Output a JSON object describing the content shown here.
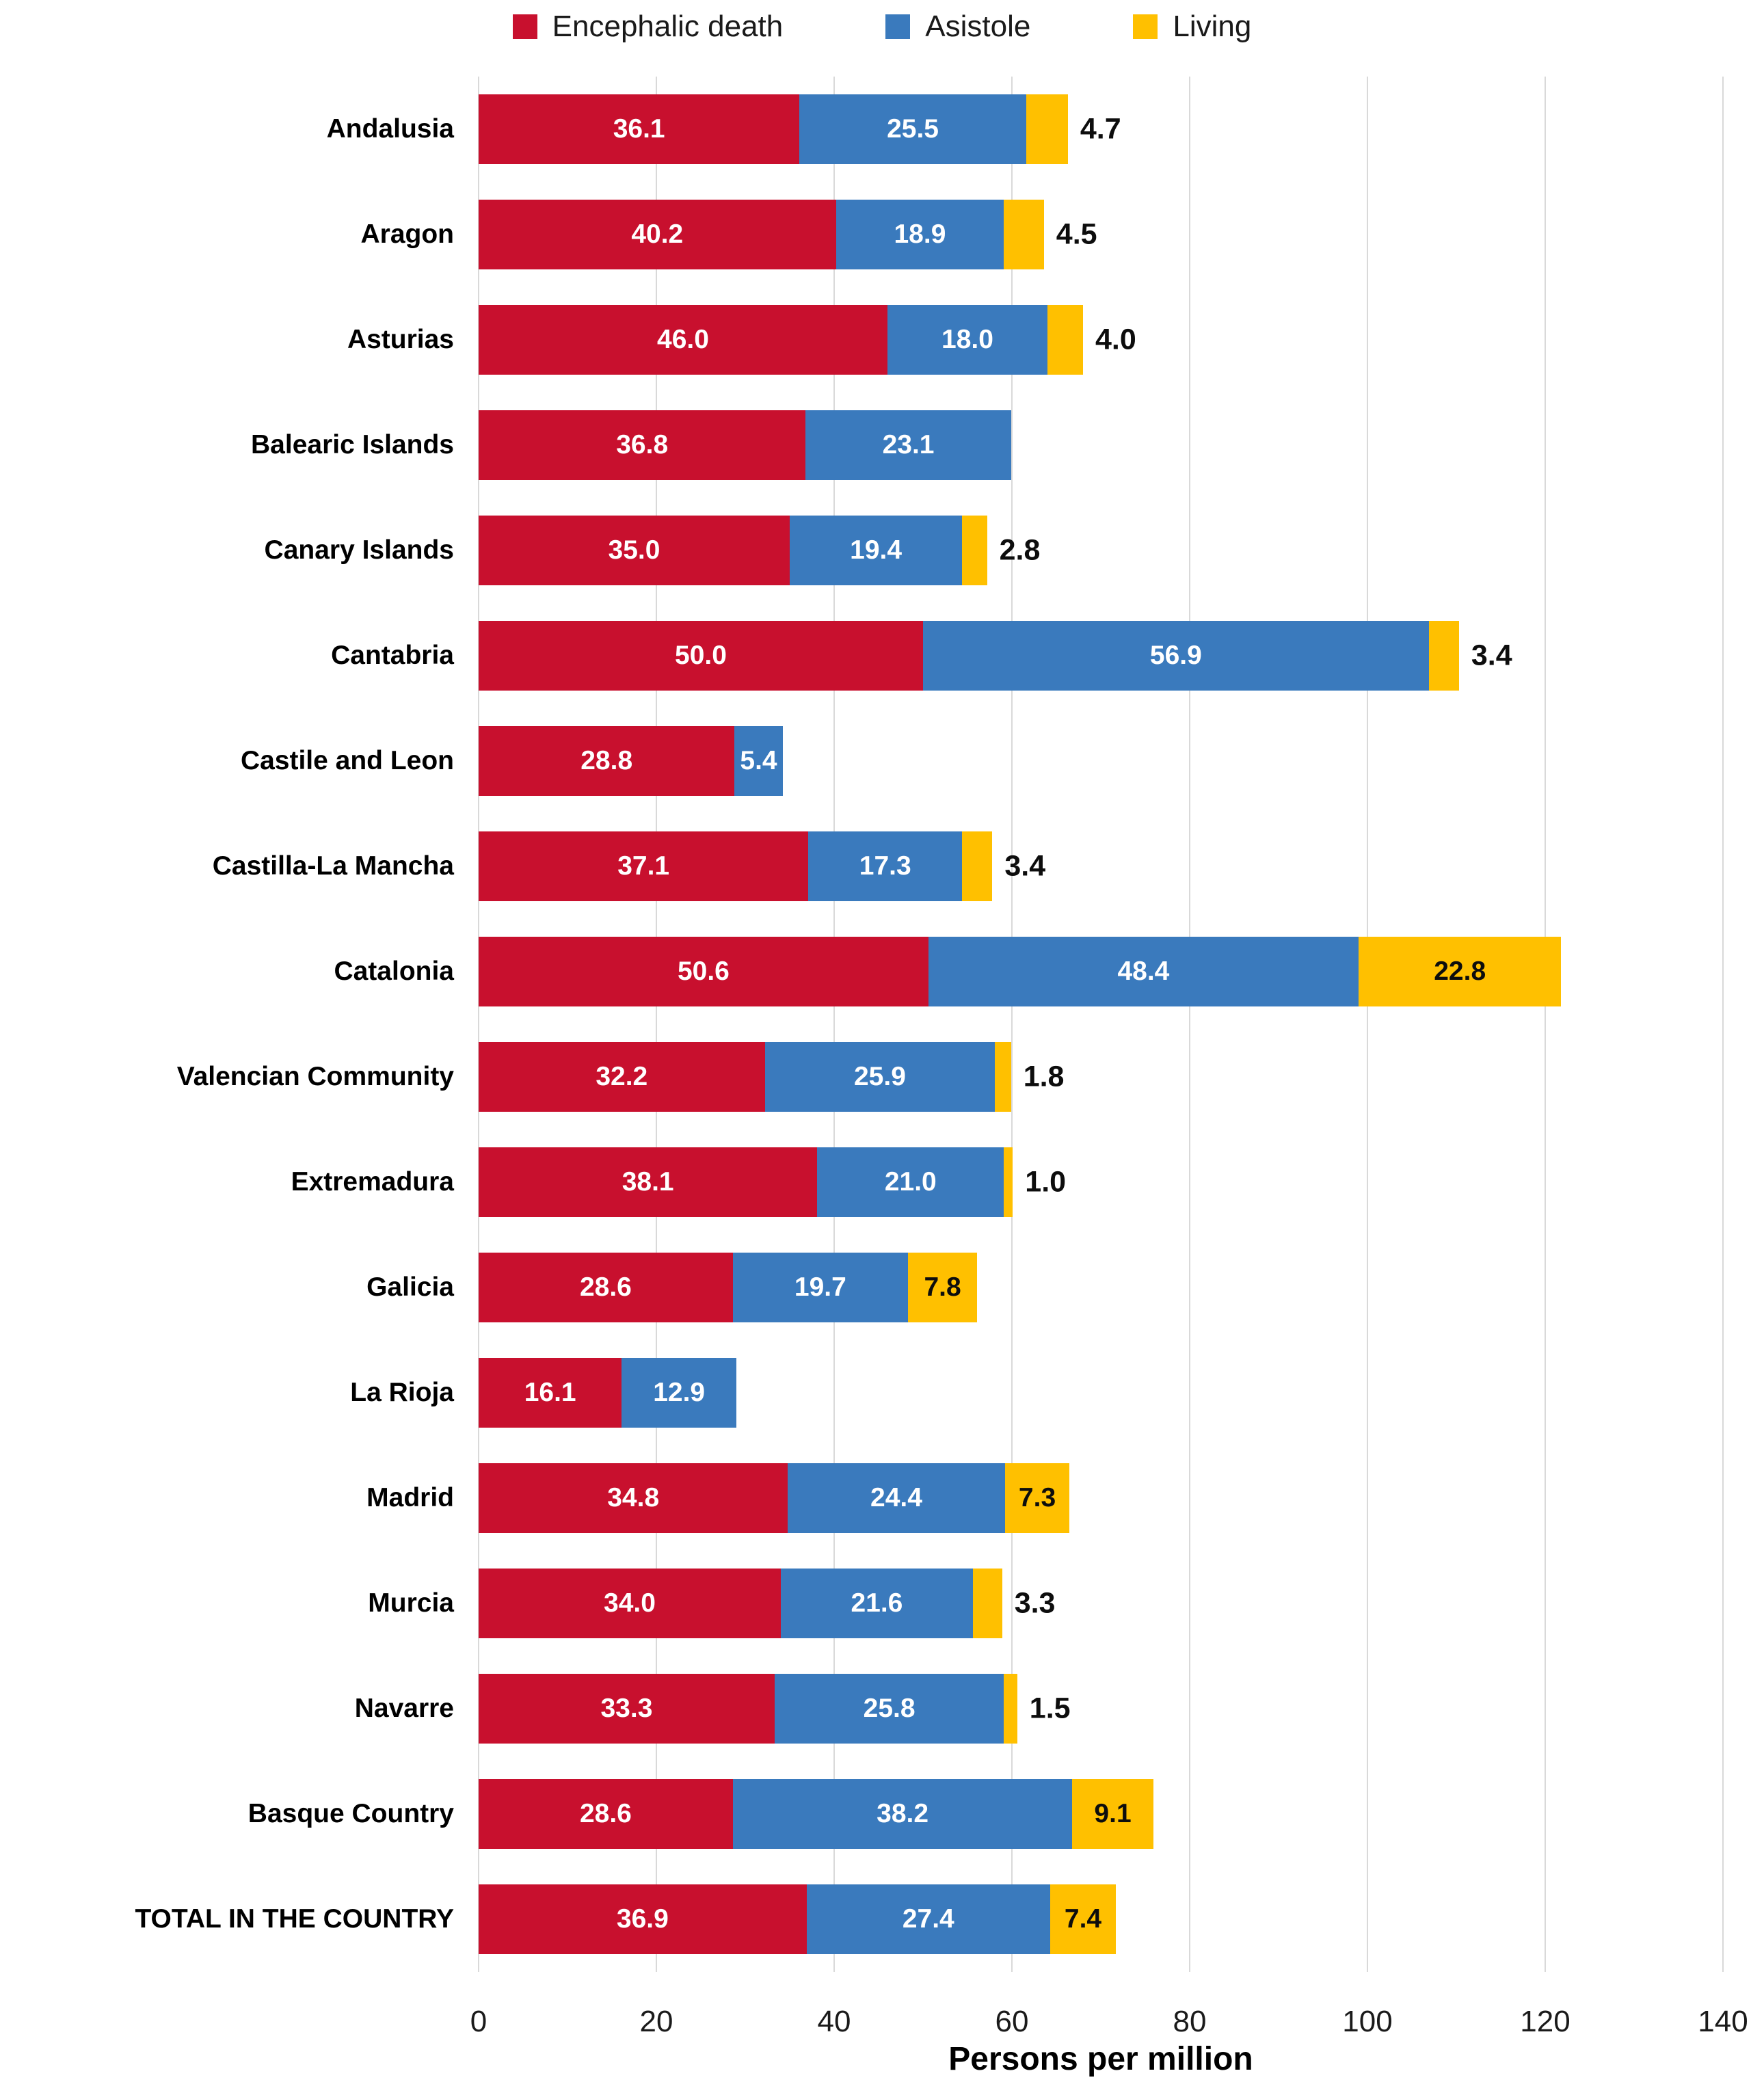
{
  "chart_data": {
    "type": "bar",
    "orientation": "horizontal",
    "stacked": true,
    "title": "",
    "xlabel": "Persons per million",
    "xlim": [
      0,
      140
    ],
    "xticks": [
      0,
      20,
      40,
      60,
      80,
      100,
      120,
      140
    ],
    "grid": "vertical",
    "legend_position": "top",
    "legend": [
      {
        "label": "Encephalic death",
        "color": "#c8102e"
      },
      {
        "label": "Asistole",
        "color": "#3a7abd"
      },
      {
        "label": "Living",
        "color": "#ffc000"
      }
    ],
    "categories": [
      "Andalusia",
      "Aragon",
      "Asturias",
      "Balearic Islands",
      "Canary Islands",
      "Cantabria",
      "Castile and Leon",
      "Castilla-La Mancha",
      "Catalonia",
      "Valencian Community",
      "Extremadura",
      "Galicia",
      "La Rioja",
      "Madrid",
      "Murcia",
      "Navarre",
      "Basque Country",
      "TOTAL IN THE COUNTRY"
    ],
    "series": [
      {
        "name": "Encephalic death",
        "color": "#c8102e",
        "label_color": "#ffffff",
        "values": [
          36.1,
          40.2,
          46.0,
          36.8,
          35.0,
          50.0,
          28.8,
          37.1,
          50.6,
          32.2,
          38.1,
          28.6,
          16.1,
          34.8,
          34.0,
          33.3,
          28.6,
          36.9
        ]
      },
      {
        "name": "Asistole",
        "color": "#3a7abd",
        "label_color": "#ffffff",
        "values": [
          25.5,
          18.9,
          18.0,
          23.1,
          19.4,
          56.9,
          5.4,
          17.3,
          48.4,
          25.9,
          21.0,
          19.7,
          12.9,
          24.4,
          21.6,
          25.8,
          38.2,
          27.4
        ]
      },
      {
        "name": "Living",
        "color": "#ffc000",
        "label_color": "#0d0d0d",
        "values": [
          4.7,
          4.5,
          4.0,
          null,
          2.8,
          3.4,
          null,
          3.4,
          22.8,
          1.8,
          1.0,
          7.8,
          null,
          7.3,
          3.3,
          1.5,
          9.1,
          7.4
        ]
      }
    ],
    "living_label_inside_threshold": 7
  }
}
